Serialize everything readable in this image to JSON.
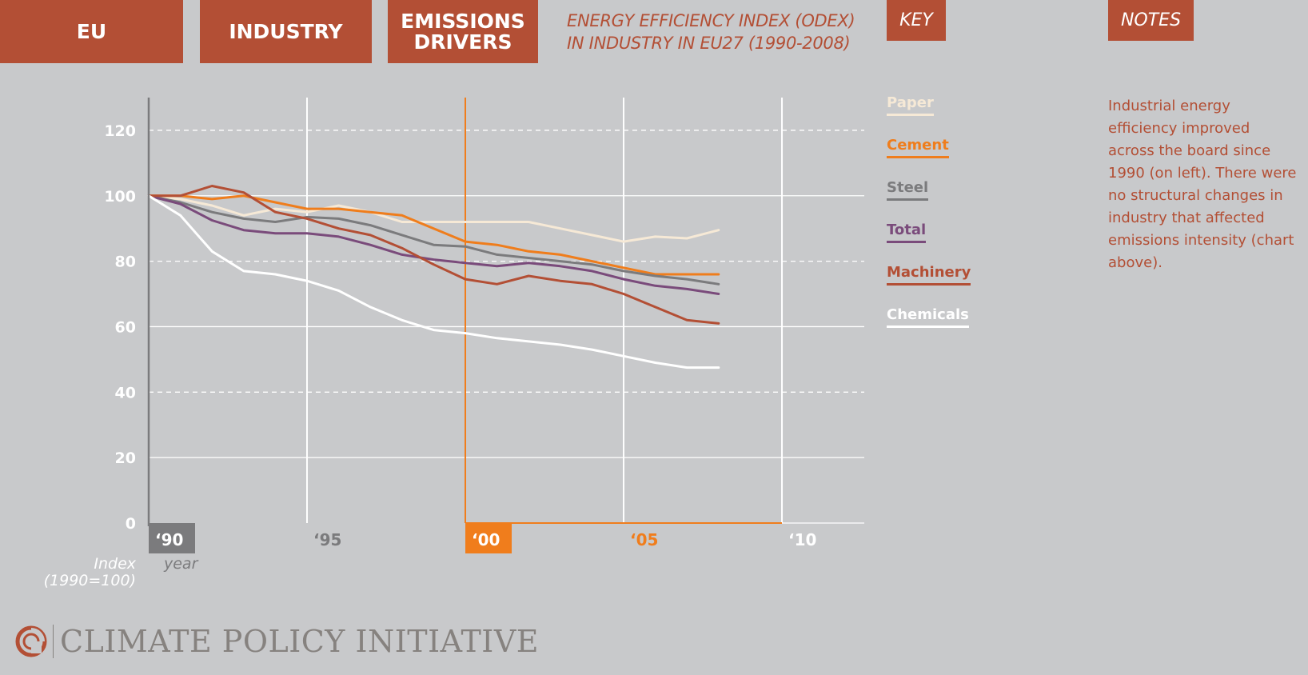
{
  "nav": {
    "eu": "EU",
    "industry": "INDUSTRY",
    "emissions_line1": "EMISSIONS",
    "emissions_line2": "DRIVERS"
  },
  "title_line1": "ENERGY EFFICIENCY INDEX (ODEX)",
  "title_line2": "IN INDUSTRY IN EU27 (1990-2008)",
  "key_label": "KEY",
  "notes_label": "NOTES",
  "notes_text": "Industrial energy efficiency improved across the board since 1990 (on left). There were no structural changes in industry that affected emissions intensity (chart above).",
  "logo_text": "CLIMATE POLICY INITIATIVE",
  "colors": {
    "background": "#c8c9cb",
    "brand": "#b34f35",
    "highlight": "#f07d1c",
    "paper": "#f6e9d6",
    "cement": "#ef7d1c",
    "steel": "#7b7b7d",
    "total": "#7a4b7b",
    "machinery": "#b34f35",
    "chemicals": "#ffffff"
  },
  "chart_data": {
    "type": "line",
    "xlabel": "year",
    "ylabel": "Index (1990=100)",
    "ylabel_line1": "Index",
    "ylabel_line2": "(1990=100)",
    "xlim": [
      1990,
      2012.6
    ],
    "ylim": [
      0,
      130
    ],
    "y_ticks": [
      0,
      20,
      40,
      60,
      80,
      100,
      120
    ],
    "y_tick_labels": [
      "0",
      "20",
      "40",
      "60",
      "80",
      "100",
      "120"
    ],
    "x_ticks": [
      1990,
      1995,
      2000,
      2005,
      2010
    ],
    "x_tick_labels": [
      "‘90",
      "‘95",
      "‘00",
      "‘05",
      "‘10"
    ],
    "highlight_year": 2000,
    "grid": true,
    "legend_position": "right",
    "x": [
      1990,
      1991,
      1992,
      1993,
      1994,
      1995,
      1996,
      1997,
      1998,
      1999,
      2000,
      2001,
      2002,
      2003,
      2004,
      2005,
      2006,
      2007,
      2008
    ],
    "series": [
      {
        "name": "Paper",
        "color_key": "paper",
        "values": [
          100,
          99,
          97,
          94,
          96,
          95,
          97,
          95,
          92,
          92,
          92,
          92,
          92,
          90,
          88,
          86,
          87.5,
          87,
          89.5
        ]
      },
      {
        "name": "Cement",
        "color_key": "cement",
        "values": [
          100,
          100,
          99,
          100,
          98,
          96,
          96,
          95,
          94,
          90,
          86,
          85,
          83,
          82,
          80,
          78,
          76,
          76,
          76
        ]
      },
      {
        "name": "Steel",
        "color_key": "steel",
        "values": [
          100,
          98,
          95,
          93,
          92,
          93.5,
          93,
          91,
          88,
          85,
          84.5,
          82,
          81,
          80,
          79,
          77,
          75.5,
          74.5,
          73
        ]
      },
      {
        "name": "Total",
        "color_key": "total",
        "values": [
          100,
          97.5,
          92.5,
          89.5,
          88.5,
          88.5,
          87.5,
          85,
          82,
          80.5,
          79.5,
          78.5,
          79.5,
          78.5,
          77,
          74.5,
          72.5,
          71.5,
          70
        ]
      },
      {
        "name": "Machinery",
        "color_key": "machinery",
        "values": [
          100,
          100,
          103,
          101,
          95,
          93,
          90,
          88,
          84,
          79,
          74.5,
          73,
          75.5,
          74,
          73,
          70,
          66,
          62,
          61
        ]
      },
      {
        "name": "Chemicals",
        "color_key": "chemicals",
        "values": [
          100,
          94,
          83,
          77,
          76,
          74,
          71,
          66,
          62,
          59,
          58,
          56.5,
          55.5,
          54.5,
          53,
          51,
          49,
          47.5,
          47.5
        ]
      }
    ]
  }
}
